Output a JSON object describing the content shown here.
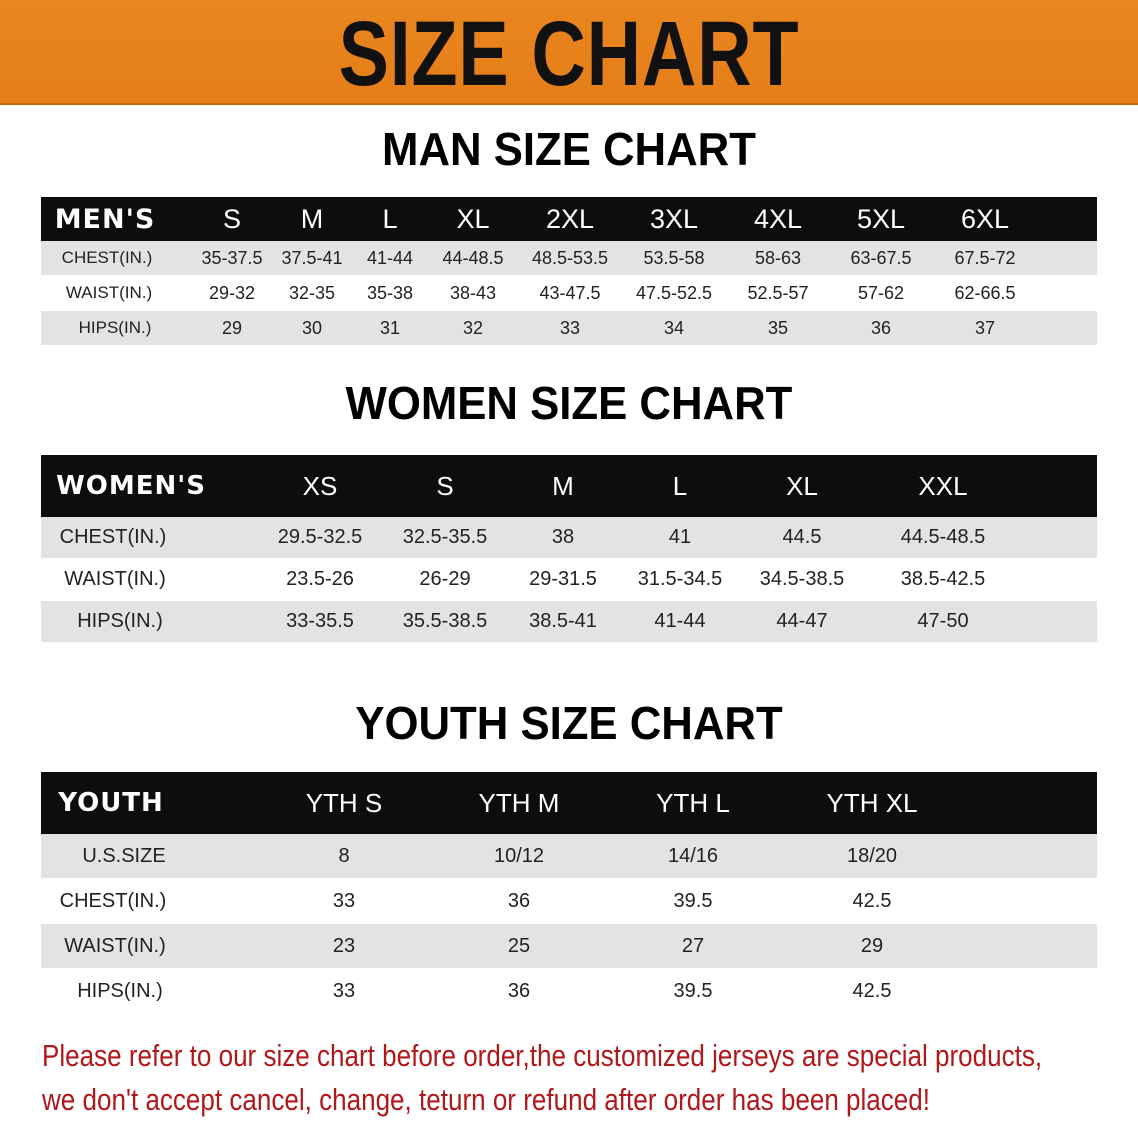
{
  "banner": {
    "title": "SIZE CHART",
    "color": "#e8821e"
  },
  "men": {
    "title": "MAN SIZE CHART",
    "header": [
      "MEN'S",
      "S",
      "M",
      "L",
      "XL",
      "2XL",
      "3XL",
      "4XL",
      "5XL",
      "6XL"
    ],
    "rows": [
      [
        "CHEST(IN.)",
        "35-37.5",
        "37.5-41",
        "41-44",
        "44-48.5",
        "48.5-53.5",
        "53.5-58",
        "58-63",
        "63-67.5",
        "67.5-72"
      ],
      [
        "WAIST(IN.)",
        "29-32",
        "32-35",
        "35-38",
        "38-43",
        "43-47.5",
        "47.5-52.5",
        "52.5-57",
        "57-62",
        "62-66.5"
      ],
      [
        "HIPS(IN.)",
        "29",
        "30",
        "31",
        "32",
        "33",
        "34",
        "35",
        "36",
        "37"
      ]
    ]
  },
  "women": {
    "title": "WOMEN SIZE CHART",
    "header": [
      "WOMEN'S",
      "XS",
      "S",
      "M",
      "L",
      "XL",
      "XXL"
    ],
    "rows": [
      [
        "CHEST(IN.)",
        "29.5-32.5",
        "32.5-35.5",
        "38",
        "41",
        "44.5",
        "44.5-48.5"
      ],
      [
        "WAIST(IN.)",
        "23.5-26",
        "26-29",
        "29-31.5",
        "31.5-34.5",
        "34.5-38.5",
        "38.5-42.5"
      ],
      [
        "HIPS(IN.)",
        "33-35.5",
        "35.5-38.5",
        "38.5-41",
        "41-44",
        "44-47",
        "47-50"
      ]
    ]
  },
  "youth": {
    "title": "YOUTH SIZE CHART",
    "header": [
      "YOUTH",
      "YTH S",
      "YTH M",
      "YTH L",
      "YTH XL"
    ],
    "rows": [
      [
        "U.S.SIZE",
        "8",
        "10/12",
        "14/16",
        "18/20"
      ],
      [
        "CHEST(IN.)",
        "33",
        "36",
        "39.5",
        "42.5"
      ],
      [
        "WAIST(IN.)",
        "23",
        "25",
        "27",
        "29"
      ],
      [
        "HIPS(IN.)",
        "33",
        "36",
        "39.5",
        "42.5"
      ]
    ]
  },
  "notice": {
    "line1": "Please refer to our size chart before order,the customized jerseys are special products,",
    "line2": "we don't accept cancel, change, teturn or refund after order has been placed!",
    "color": "#b0191c"
  }
}
